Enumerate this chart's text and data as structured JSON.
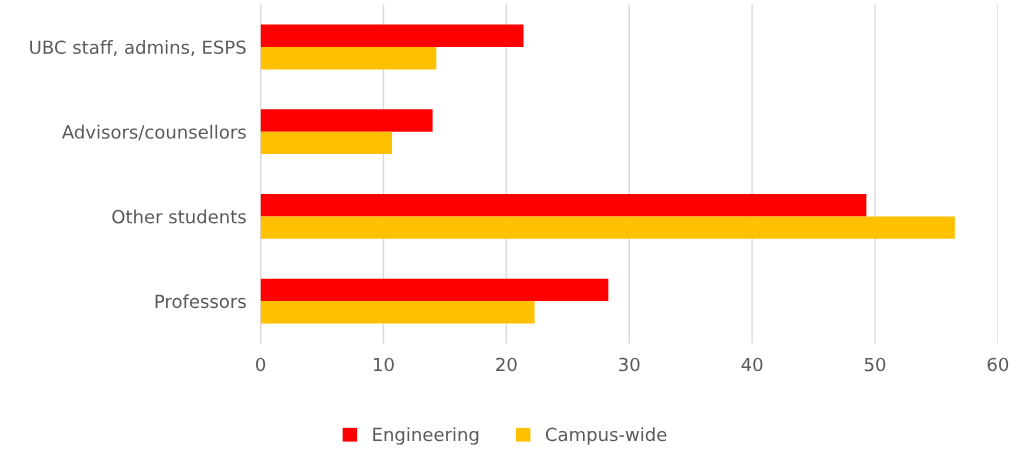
{
  "chart_data": {
    "type": "bar",
    "orientation": "horizontal",
    "categories": [
      "UBC staff, admins, ESPS",
      "Advisors/counsellors",
      "Other students",
      "Professors"
    ],
    "series": [
      {
        "name": "Engineering",
        "color": "#ff0000",
        "values": [
          21.4,
          14.0,
          49.3,
          28.3
        ]
      },
      {
        "name": "Campus-wide",
        "color": "#ffc000",
        "values": [
          14.3,
          10.7,
          56.5,
          22.3
        ]
      }
    ],
    "xlim": [
      0,
      60
    ],
    "xticks": [
      0,
      10,
      20,
      30,
      40,
      50,
      60
    ],
    "grid": "x",
    "legend": "bottom"
  }
}
